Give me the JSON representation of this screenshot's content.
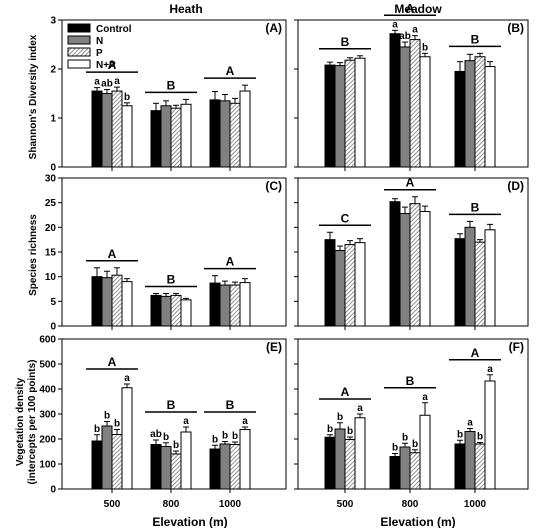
{
  "column_titles": [
    "Heath",
    "Meadow"
  ],
  "legend": [
    "Control",
    "N",
    "P",
    "N+P"
  ],
  "xlabel": "Elevation (m)",
  "ylabels": [
    "Shannon's Diversity index",
    "Species richness",
    "Vegetation density",
    "(intercepts per 100 points)"
  ],
  "colors": {
    "control": "#000000",
    "n": "#808080",
    "p_hatch": "#9a9a9a",
    "np": "#ffffff"
  },
  "chart_data": [
    {
      "type": "bar",
      "panel": "(A)",
      "title": "Heath",
      "categories": [
        "500",
        "800",
        "1000"
      ],
      "ylim": [
        0,
        3
      ],
      "yticks": [
        0,
        1,
        2,
        3
      ],
      "series": [
        {
          "name": "Control",
          "values": [
            1.55,
            1.15,
            1.37
          ]
        },
        {
          "name": "N",
          "values": [
            1.5,
            1.25,
            1.35
          ]
        },
        {
          "name": "P",
          "values": [
            1.55,
            1.2,
            1.3
          ]
        },
        {
          "name": "N+P",
          "values": [
            1.25,
            1.28,
            1.55
          ]
        }
      ],
      "errors": [
        [
          0.07,
          0.15,
          0.17
        ],
        [
          0.08,
          0.1,
          0.13
        ],
        [
          0.08,
          0.06,
          0.1
        ],
        [
          0.06,
          0.1,
          0.12
        ]
      ],
      "bar_letters": [
        [
          "a",
          "ab",
          "a",
          "b"
        ],
        [],
        []
      ],
      "group_letters": [
        "A",
        "B",
        "A"
      ]
    },
    {
      "type": "bar",
      "panel": "(B)",
      "title": "Meadow",
      "categories": [
        "500",
        "800",
        "1000"
      ],
      "ylim": [
        0,
        3
      ],
      "yticks": [
        0,
        1,
        2,
        3
      ],
      "series": [
        {
          "name": "Control",
          "values": [
            2.08,
            2.72,
            1.95
          ]
        },
        {
          "name": "N",
          "values": [
            2.07,
            2.45,
            2.17
          ]
        },
        {
          "name": "P",
          "values": [
            2.18,
            2.6,
            2.25
          ]
        },
        {
          "name": "N+P",
          "values": [
            2.22,
            2.25,
            2.05
          ]
        }
      ],
      "errors": [
        [
          0.06,
          0.07,
          0.2
        ],
        [
          0.06,
          0.1,
          0.13
        ],
        [
          0.05,
          0.08,
          0.07
        ],
        [
          0.05,
          0.07,
          0.1
        ]
      ],
      "bar_letters": [
        [],
        [
          "a",
          "ab",
          "a",
          "b"
        ],
        []
      ],
      "group_letters": [
        "B",
        "A",
        "B"
      ]
    },
    {
      "type": "bar",
      "panel": "(C)",
      "categories": [
        "500",
        "800",
        "1000"
      ],
      "ylim": [
        0,
        30
      ],
      "yticks": [
        0,
        5,
        10,
        15,
        20,
        25,
        30
      ],
      "series": [
        {
          "name": "Control",
          "values": [
            10,
            6.2,
            8.7
          ]
        },
        {
          "name": "N",
          "values": [
            9.8,
            6,
            8.3
          ]
        },
        {
          "name": "P",
          "values": [
            10.3,
            6.2,
            8.3
          ]
        },
        {
          "name": "N+P",
          "values": [
            9,
            5.3,
            8.8
          ]
        }
      ],
      "errors": [
        [
          1.8,
          0.4,
          1.5
        ],
        [
          1.3,
          0.6,
          0.8
        ],
        [
          1.5,
          0.4,
          0.6
        ],
        [
          0.6,
          0.3,
          0.8
        ]
      ],
      "bar_letters": [
        [],
        [],
        []
      ],
      "group_letters": [
        "A",
        "B",
        "A"
      ]
    },
    {
      "type": "bar",
      "panel": "(D)",
      "categories": [
        "500",
        "800",
        "1000"
      ],
      "ylim": [
        0,
        30
      ],
      "yticks": [
        0,
        5,
        10,
        15,
        20,
        25,
        30
      ],
      "series": [
        {
          "name": "Control",
          "values": [
            17.5,
            25.2,
            17.7
          ]
        },
        {
          "name": "N",
          "values": [
            15.3,
            22.8,
            20
          ]
        },
        {
          "name": "P",
          "values": [
            16.5,
            24.8,
            17
          ]
        },
        {
          "name": "N+P",
          "values": [
            16.9,
            23.2,
            19.5
          ]
        }
      ],
      "errors": [
        [
          1.5,
          0.6,
          1
        ],
        [
          0.9,
          1.3,
          1.2
        ],
        [
          0.8,
          1.4,
          0.5
        ],
        [
          0.8,
          1.1,
          1.1
        ]
      ],
      "bar_letters": [
        [],
        [],
        []
      ],
      "group_letters": [
        "C",
        "A",
        "B"
      ]
    },
    {
      "type": "bar",
      "panel": "(E)",
      "categories": [
        "500",
        "800",
        "1000"
      ],
      "ylim": [
        0,
        600
      ],
      "yticks": [
        0,
        100,
        200,
        300,
        400,
        500,
        600
      ],
      "series": [
        {
          "name": "Control",
          "values": [
            192,
            178,
            160
          ]
        },
        {
          "name": "N",
          "values": [
            252,
            170,
            180
          ]
        },
        {
          "name": "P",
          "values": [
            218,
            140,
            178
          ]
        },
        {
          "name": "N+P",
          "values": [
            405,
            228,
            238
          ]
        }
      ],
      "errors": [
        [
          25,
          18,
          15
        ],
        [
          18,
          15,
          10
        ],
        [
          20,
          12,
          10
        ],
        [
          15,
          20,
          10
        ]
      ],
      "bar_letters": [
        [
          "b",
          "b",
          "b",
          "a"
        ],
        [
          "ab",
          "b",
          "b",
          "a"
        ],
        [
          "b",
          "b",
          "b",
          "a"
        ]
      ],
      "group_letters": [
        "A",
        "B",
        "B"
      ]
    },
    {
      "type": "bar",
      "panel": "(F)",
      "categories": [
        "500",
        "800",
        "1000"
      ],
      "ylim": [
        0,
        600
      ],
      "yticks": [
        0,
        100,
        200,
        300,
        400,
        500,
        600
      ],
      "series": [
        {
          "name": "Control",
          "values": [
            207,
            130,
            180
          ]
        },
        {
          "name": "N",
          "values": [
            240,
            168,
            230
          ]
        },
        {
          "name": "P",
          "values": [
            198,
            145,
            180
          ]
        },
        {
          "name": "N+P",
          "values": [
            285,
            295,
            432
          ]
        }
      ],
      "errors": [
        [
          10,
          12,
          15
        ],
        [
          25,
          15,
          12
        ],
        [
          10,
          12,
          6
        ],
        [
          15,
          50,
          25
        ]
      ],
      "bar_letters": [
        [
          "b",
          "b",
          "b",
          "a"
        ],
        [
          "b",
          "b",
          "b",
          "a"
        ],
        [
          "b",
          "a",
          "b",
          "a"
        ]
      ],
      "group_letters": [
        "A",
        "B",
        "A"
      ]
    }
  ]
}
